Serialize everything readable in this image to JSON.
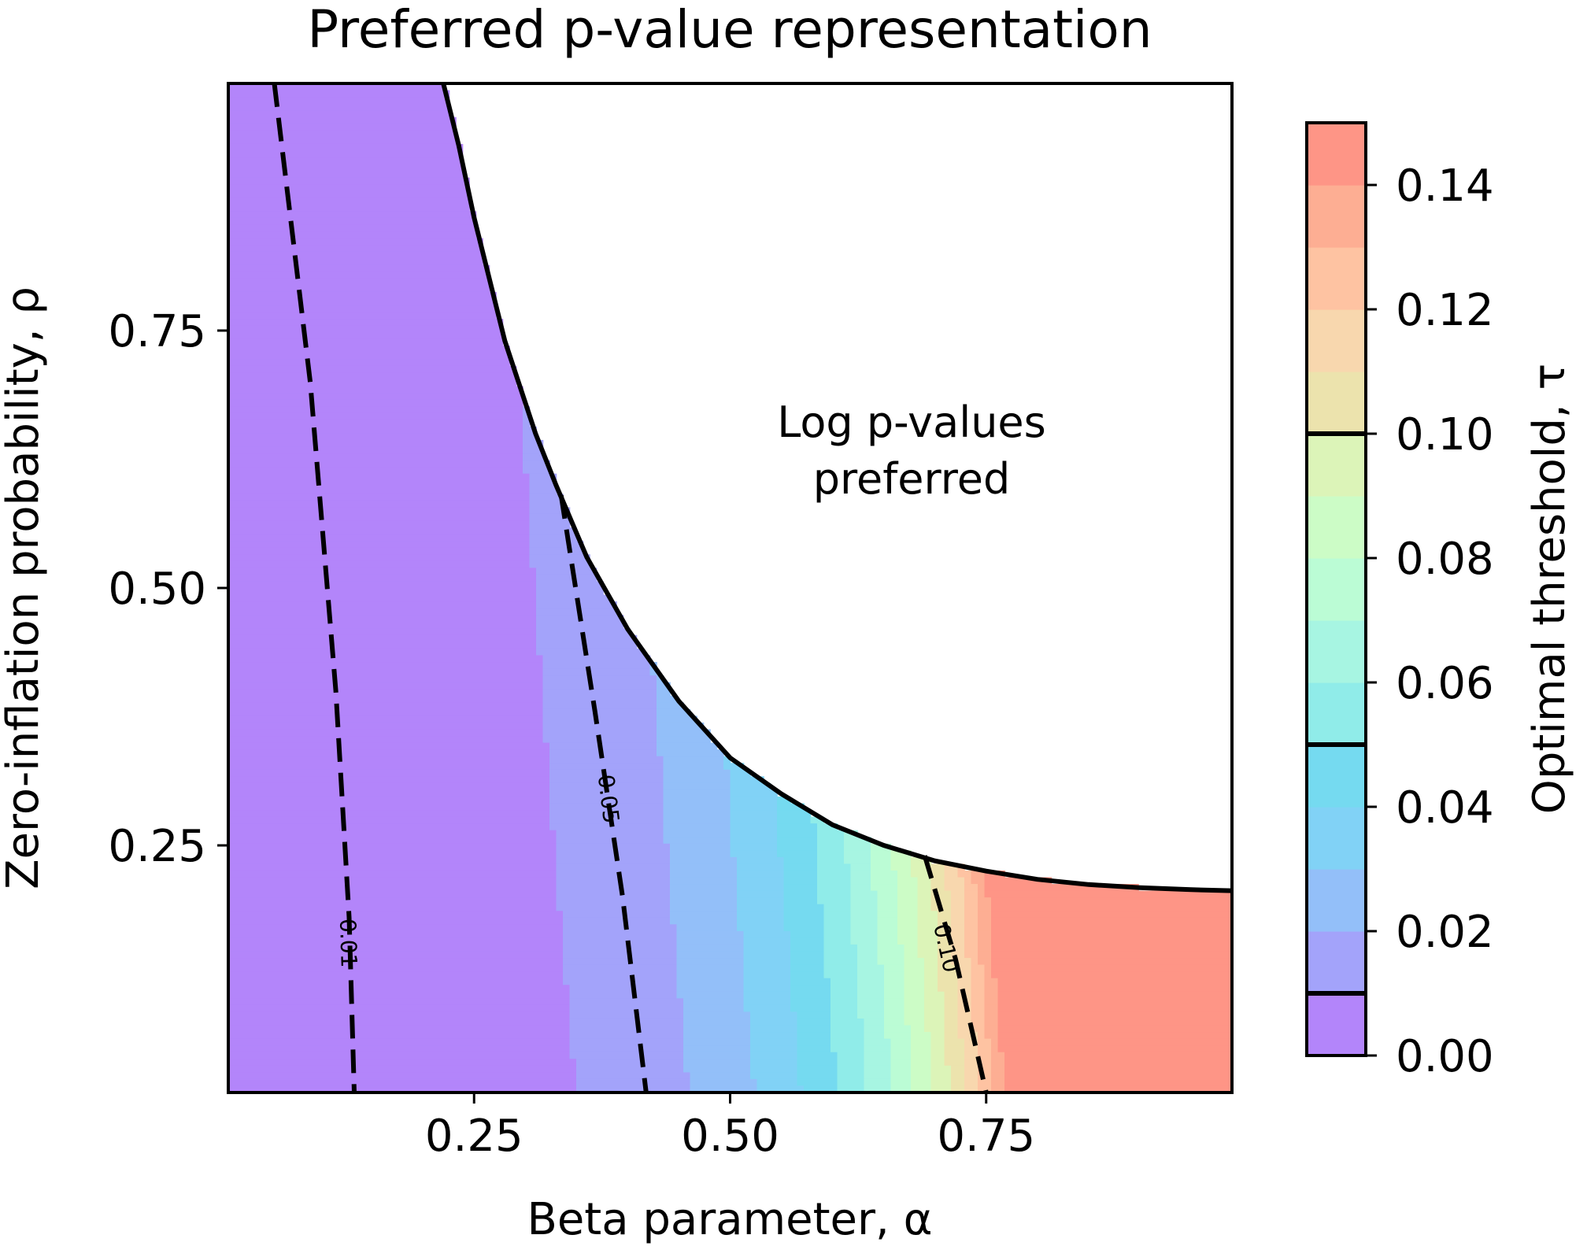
{
  "chart_data": {
    "type": "heatmap",
    "title": "Preferred p-value representation",
    "xlabel": "Beta parameter, α",
    "ylabel": "Zero-inflation probability, ρ",
    "colorbar_label": "Optimal threshold, τ",
    "xlim": [
      0.01,
      0.99
    ],
    "ylim": [
      0.01,
      0.99
    ],
    "x_ticks": [
      0.25,
      0.5,
      0.75
    ],
    "x_tick_labels": [
      "0.25",
      "0.50",
      "0.75"
    ],
    "y_ticks": [
      0.25,
      0.5,
      0.75
    ],
    "y_tick_labels": [
      "0.25",
      "0.50",
      "0.75"
    ],
    "colorbar_range": [
      0.0,
      0.15
    ],
    "colorbar_ticks": [
      0.0,
      0.02,
      0.04,
      0.06,
      0.08,
      0.1,
      0.12,
      0.14
    ],
    "colorbar_tick_labels": [
      "0.00",
      "0.02",
      "0.04",
      "0.06",
      "0.08",
      "0.10",
      "0.12",
      "0.14"
    ],
    "colorbar_marked_levels": [
      0.01,
      0.05,
      0.1
    ],
    "contour_levels": [
      0.0,
      0.01,
      0.02,
      0.03,
      0.04,
      0.05,
      0.06,
      0.07,
      0.08,
      0.09,
      0.1,
      0.11,
      0.12,
      0.13,
      0.14,
      0.15
    ],
    "band_colors": [
      "#b385fa",
      "#a3a3fa",
      "#93bff9",
      "#81d2f6",
      "#75daf0",
      "#90ece9",
      "#a7f5e2",
      "#bbfcd5",
      "#ccfcc6",
      "#dcf4b8",
      "#ece3ad",
      "#f8d7ae",
      "#fec3a2",
      "#fdae93",
      "#fe9586",
      "#fd7f79"
    ],
    "threshold_contours": [
      {
        "label": "0.01",
        "level": 0.01,
        "style": "dashed",
        "points": [
          [
            0.055,
            0.99
          ],
          [
            0.09,
            0.7
          ],
          [
            0.115,
            0.4
          ],
          [
            0.128,
            0.18
          ],
          [
            0.133,
            0.01
          ]
        ]
      },
      {
        "label": "0.05",
        "level": 0.05,
        "style": "dashed",
        "points": [
          [
            0.335,
            0.59
          ],
          [
            0.368,
            0.38
          ],
          [
            0.395,
            0.2
          ],
          [
            0.418,
            0.01
          ]
        ]
      },
      {
        "label": "0.10",
        "level": 0.1,
        "style": "dashed",
        "points": [
          [
            0.69,
            0.24
          ],
          [
            0.72,
            0.14
          ],
          [
            0.75,
            0.01
          ]
        ]
      }
    ],
    "boundary": {
      "label": "Log p-values preferred",
      "label_lines": [
        "Log p-values",
        "preferred"
      ],
      "style": "solid",
      "points": [
        [
          0.22,
          0.99
        ],
        [
          0.235,
          0.93
        ],
        [
          0.25,
          0.86
        ],
        [
          0.28,
          0.74
        ],
        [
          0.31,
          0.65
        ],
        [
          0.33,
          0.6
        ],
        [
          0.36,
          0.53
        ],
        [
          0.4,
          0.46
        ],
        [
          0.45,
          0.39
        ],
        [
          0.5,
          0.335
        ],
        [
          0.55,
          0.3
        ],
        [
          0.6,
          0.27
        ],
        [
          0.65,
          0.25
        ],
        [
          0.7,
          0.235
        ],
        [
          0.75,
          0.225
        ],
        [
          0.8,
          0.217
        ],
        [
          0.85,
          0.212
        ],
        [
          0.9,
          0.209
        ],
        [
          0.95,
          0.207
        ],
        [
          0.99,
          0.206
        ]
      ]
    }
  }
}
